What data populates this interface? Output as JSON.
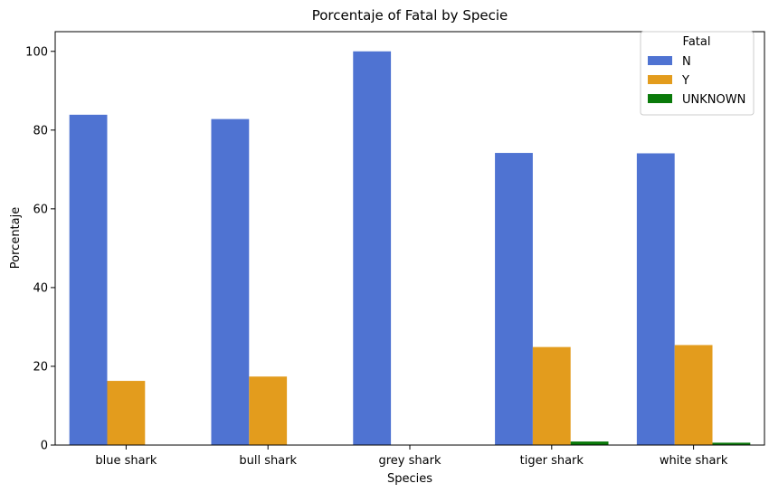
{
  "chart_data": {
    "type": "bar",
    "title": "Porcentaje of Fatal by Specie",
    "xlabel": "Species",
    "ylabel": "Porcentaje",
    "ylim": [
      0,
      105
    ],
    "yticks": [
      0,
      20,
      40,
      60,
      80,
      100
    ],
    "categories": [
      "blue shark",
      "bull shark",
      "grey shark",
      "tiger shark",
      "white shark"
    ],
    "series": [
      {
        "name": "N",
        "color": "#4f73d2",
        "values": [
          83.9,
          82.8,
          100.0,
          74.2,
          74.1
        ]
      },
      {
        "name": "Y",
        "color": "#e39c1d",
        "values": [
          16.3,
          17.4,
          0,
          24.9,
          25.4
        ]
      },
      {
        "name": "UNKNOWN",
        "color": "#0a7a0a",
        "values": [
          0,
          0,
          0,
          0.9,
          0.6
        ]
      }
    ],
    "legend": {
      "title": "Fatal",
      "placement": "top-right"
    },
    "grid": false
  }
}
